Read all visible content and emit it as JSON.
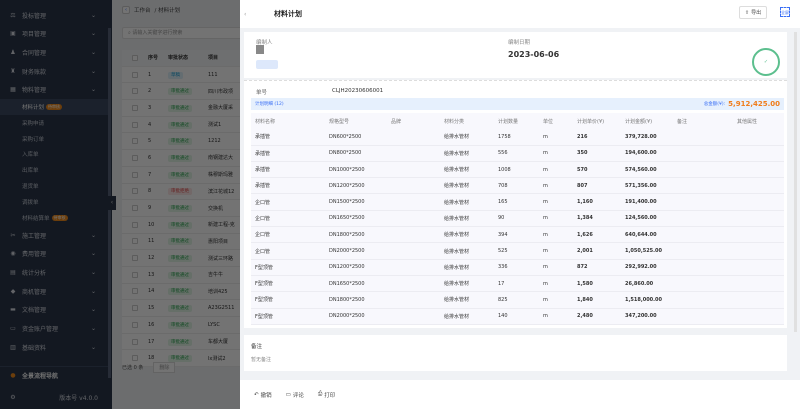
{
  "sidebar": {
    "items": [
      {
        "label": "投标管理",
        "icon": "bid-icon"
      },
      {
        "label": "项目管理",
        "icon": "project-icon"
      },
      {
        "label": "合同管理",
        "icon": "contract-icon"
      },
      {
        "label": "财务账款",
        "icon": "finance-icon"
      },
      {
        "label": "物料管理",
        "icon": "material-icon"
      }
    ],
    "sub": [
      {
        "label": "材料计划",
        "tag": "待审核",
        "active": true
      },
      {
        "label": "采购申请"
      },
      {
        "label": "采购订单"
      },
      {
        "label": "入库单"
      },
      {
        "label": "出库单"
      },
      {
        "label": "退货单"
      },
      {
        "label": "调拨单"
      },
      {
        "label": "材料结算单",
        "tag": "待审核"
      }
    ],
    "items2": [
      {
        "label": "施工管理"
      },
      {
        "label": "费用管理"
      },
      {
        "label": "统计分析"
      },
      {
        "label": "商机管理"
      },
      {
        "label": "文档管理"
      },
      {
        "label": "资金账户管理"
      },
      {
        "label": "基础资料"
      }
    ],
    "nav": "全景流程导航",
    "version": "版本号 v4.0.0"
  },
  "list": {
    "breadcrumb_home": "工作台",
    "breadcrumb_current": "/ 材料计划",
    "search_placeholder": "请输入关键字进行搜索",
    "headers": [
      "序号",
      "审批状态",
      "项目"
    ],
    "rows": [
      [
        "1",
        "草稿",
        "111",
        "draft"
      ],
      [
        "2",
        "审批通过",
        "四川市政项",
        "ok"
      ],
      [
        "3",
        "审批通过",
        "金融大厦采",
        "ok"
      ],
      [
        "4",
        "审批通过",
        "测试1",
        "ok"
      ],
      [
        "5",
        "审批通过",
        "1212",
        "ok"
      ],
      [
        "6",
        "审批通过",
        "南钢建达大",
        "ok"
      ],
      [
        "7",
        "审批通过",
        "株穆斯玛雅",
        "ok"
      ],
      [
        "8",
        "审批拒绝",
        "滨江花城12",
        "rej"
      ],
      [
        "9",
        "审批通过",
        "交换机",
        "ok"
      ],
      [
        "10",
        "审批通过",
        "新建工程-克",
        "ok"
      ],
      [
        "11",
        "审批通过",
        "惠阳项目",
        "ok"
      ],
      [
        "12",
        "审批通过",
        "测试三环路",
        "ok"
      ],
      [
        "13",
        "审批通过",
        "吉牛牛",
        "ok"
      ],
      [
        "14",
        "审批通过",
        "培训425",
        "ok"
      ],
      [
        "15",
        "审批通过",
        "A23G2511",
        "ok"
      ],
      [
        "16",
        "审批通过",
        "LYSC",
        "ok"
      ],
      [
        "17",
        "审批通过",
        "车都大厦",
        "ok"
      ],
      [
        "18",
        "审批通过",
        "lx测试2",
        "ok"
      ]
    ],
    "selected": "已选 0 条",
    "batch_btn": "删除"
  },
  "drawer": {
    "title": "材料计划",
    "export": "导出",
    "fullscreen": "全屏",
    "creator_label": "编制人",
    "date_label": "编制日期",
    "date": "2023-06-06",
    "stamp": "审批通过",
    "order_label": "单号",
    "order_no": "CLJH20230606001",
    "detail_label": "计划明细 (12)",
    "total_label": "总金额(¥):",
    "total": "5,912,425.00",
    "headers": [
      "材料名称",
      "规格型号",
      "品牌",
      "材料分类",
      "计划数量",
      "单位",
      "计划单价(¥)",
      "计划金额(¥)",
      "备注",
      "其他属性"
    ],
    "rows": [
      [
        "承插管",
        "DN600*2500",
        "",
        "给排水管材",
        "1758",
        "m",
        "216",
        "379,728.00"
      ],
      [
        "承插管",
        "DN800*2500",
        "",
        "给排水管材",
        "556",
        "m",
        "350",
        "194,600.00"
      ],
      [
        "承插管",
        "DN1000*2500",
        "",
        "给排水管材",
        "1008",
        "m",
        "570",
        "574,560.00"
      ],
      [
        "承插管",
        "DN1200*2500",
        "",
        "给排水管材",
        "708",
        "m",
        "807",
        "571,356.00"
      ],
      [
        "企口管",
        "DN1500*2500",
        "",
        "给排水管材",
        "165",
        "m",
        "1,160",
        "191,400.00"
      ],
      [
        "企口管",
        "DN1650*2500",
        "",
        "给排水管材",
        "90",
        "m",
        "1,384",
        "124,560.00"
      ],
      [
        "企口管",
        "DN1800*2500",
        "",
        "给排水管材",
        "394",
        "m",
        "1,626",
        "640,644.00"
      ],
      [
        "企口管",
        "DN2000*2500",
        "",
        "给排水管材",
        "525",
        "m",
        "2,001",
        "1,050,525.00"
      ],
      [
        "F型顶管",
        "DN1200*2500",
        "",
        "给排水管材",
        "336",
        "m",
        "872",
        "292,992.00"
      ],
      [
        "F型顶管",
        "DN1650*2500",
        "",
        "给排水管材",
        "17",
        "m",
        "1,580",
        "26,860.00"
      ],
      [
        "F型顶管",
        "DN1800*2500",
        "",
        "给排水管材",
        "825",
        "m",
        "1,840",
        "1,518,000.00"
      ],
      [
        "F型顶管",
        "DN2000*2500",
        "",
        "给排水管材",
        "140",
        "m",
        "2,480",
        "347,200.00"
      ]
    ],
    "note_label": "备注",
    "note": "暂无备注",
    "actions": [
      {
        "label": "撤销",
        "icon": "undo-icon"
      },
      {
        "label": "评论",
        "icon": "comment-icon"
      },
      {
        "label": "打印",
        "icon": "print-icon"
      }
    ]
  },
  "colors": {
    "accent": "#3a6ff5",
    "total": "#f07c1a",
    "approved": "#2aa44f",
    "rejected": "#e04545",
    "sidebar": "#1b2433"
  }
}
